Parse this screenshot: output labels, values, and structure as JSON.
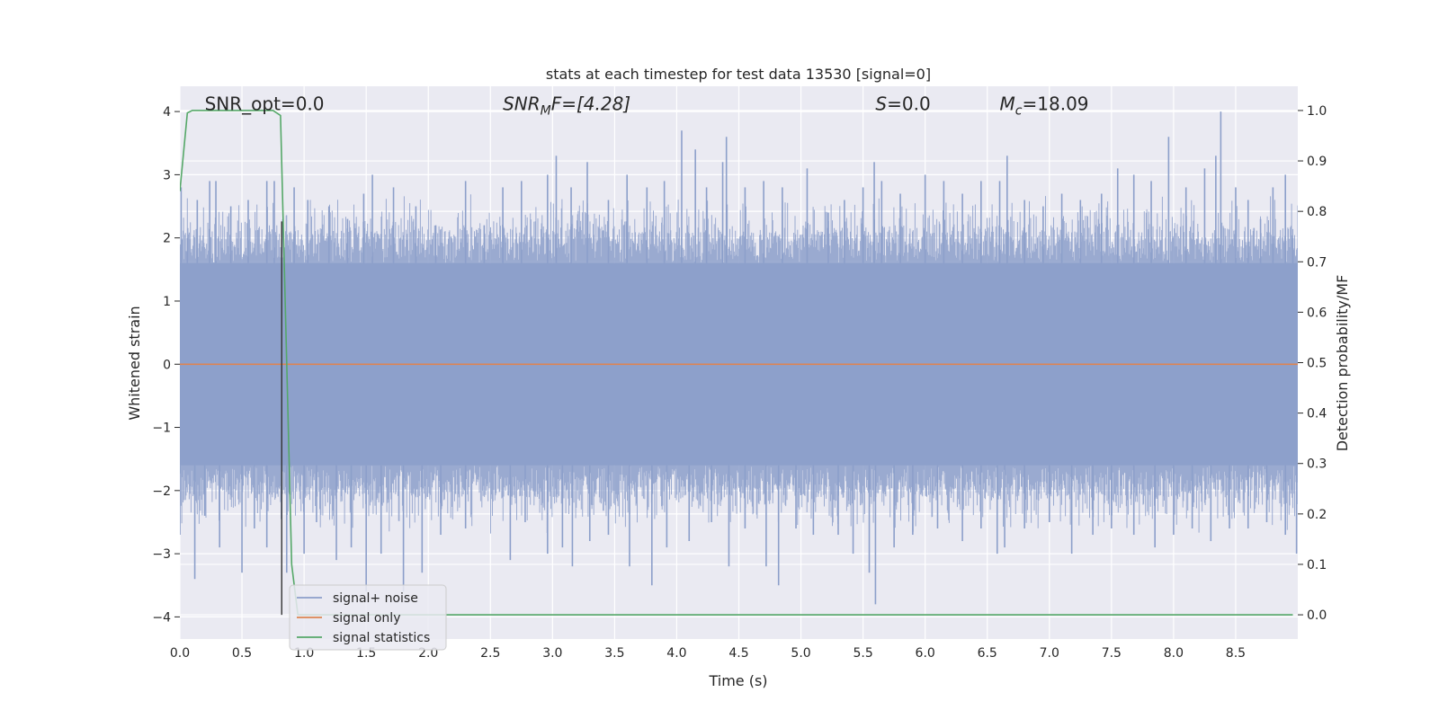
{
  "chart_data": {
    "type": "line",
    "title": "stats at each timestep for test data 13530 [signal=0]",
    "xlabel": "Time (s)",
    "ylabel": "Whitened strain",
    "y2label": "Detection probability/MF",
    "xlim": [
      0.0,
      9.0
    ],
    "ylim": [
      -4.35,
      4.4
    ],
    "y2lim": [
      -0.048,
      1.048
    ],
    "xticks": [
      "0.0",
      "0.5",
      "1.0",
      "1.5",
      "2.0",
      "2.5",
      "3.0",
      "3.5",
      "4.0",
      "4.5",
      "5.0",
      "5.5",
      "6.0",
      "6.5",
      "7.0",
      "7.5",
      "8.0",
      "8.5"
    ],
    "yticks": [
      "4",
      "3",
      "2",
      "1",
      "0",
      "−1",
      "−2",
      "−3",
      "−4"
    ],
    "y2ticks": [
      "1.0",
      "0.9",
      "0.8",
      "0.7",
      "0.6",
      "0.5",
      "0.4",
      "0.3",
      "0.2",
      "0.1",
      "0.0"
    ],
    "grid": true,
    "legend_position": "lower-left",
    "annotations": [
      {
        "id": "snr-opt",
        "label": "SNR_opt=0.0",
        "x": 0.2,
        "y": 4.12
      },
      {
        "id": "snr-mf",
        "label": "SNR",
        "sub": "M",
        "suffix": "F=[4.28]",
        "x": 2.6,
        "y": 4.12
      },
      {
        "id": "s",
        "label": "S",
        "suffix": "=0.0",
        "x": 5.6,
        "y": 4.12
      },
      {
        "id": "mc",
        "label": "M",
        "sub": "c",
        "suffix": "=18.09",
        "x": 6.6,
        "y": 4.12
      }
    ],
    "vline": {
      "x": 0.82,
      "ymin": 0.0,
      "ymax": 0.78,
      "axis": "y2"
    },
    "series": [
      {
        "name": "signal+ noise",
        "color": "#8c9fca",
        "axis": "y",
        "kind": "noise",
        "x_range": [
          0.0,
          9.0
        ],
        "band_min": -1.6,
        "band_max": 1.6,
        "peaks_up": [
          [
            0.01,
            2.8
          ],
          [
            0.06,
            2.0
          ],
          [
            0.14,
            2.6
          ],
          [
            0.24,
            2.9
          ],
          [
            0.29,
            2.9
          ],
          [
            0.41,
            2.5
          ],
          [
            0.55,
            2.6
          ],
          [
            0.7,
            2.9
          ],
          [
            0.76,
            2.9
          ],
          [
            0.92,
            2.8
          ],
          [
            1.03,
            2.6
          ],
          [
            1.2,
            2.5
          ],
          [
            1.35,
            2.3
          ],
          [
            1.48,
            2.7
          ],
          [
            1.55,
            3.0
          ],
          [
            1.72,
            2.8
          ],
          [
            1.9,
            2.5
          ],
          [
            2.06,
            2.2
          ],
          [
            2.3,
            2.9
          ],
          [
            2.45,
            2.2
          ],
          [
            2.6,
            2.8
          ],
          [
            2.75,
            2.9
          ],
          [
            2.96,
            3.0
          ],
          [
            3.03,
            3.3
          ],
          [
            3.15,
            2.8
          ],
          [
            3.28,
            3.2
          ],
          [
            3.45,
            2.6
          ],
          [
            3.6,
            3.0
          ],
          [
            3.76,
            2.8
          ],
          [
            3.9,
            2.9
          ],
          [
            4.04,
            3.7
          ],
          [
            4.15,
            3.4
          ],
          [
            4.24,
            2.8
          ],
          [
            4.37,
            3.2
          ],
          [
            4.4,
            3.6
          ],
          [
            4.55,
            2.8
          ],
          [
            4.7,
            2.9
          ],
          [
            4.85,
            2.8
          ],
          [
            5.05,
            3.1
          ],
          [
            5.22,
            2.4
          ],
          [
            5.35,
            2.6
          ],
          [
            5.5,
            2.8
          ],
          [
            5.59,
            3.2
          ],
          [
            5.65,
            2.9
          ],
          [
            5.8,
            2.7
          ],
          [
            6.0,
            3.0
          ],
          [
            6.15,
            2.9
          ],
          [
            6.3,
            2.7
          ],
          [
            6.45,
            2.9
          ],
          [
            6.6,
            2.9
          ],
          [
            6.66,
            3.3
          ],
          [
            6.8,
            2.6
          ],
          [
            6.95,
            2.5
          ],
          [
            7.1,
            2.7
          ],
          [
            7.25,
            2.6
          ],
          [
            7.42,
            2.7
          ],
          [
            7.55,
            3.1
          ],
          [
            7.68,
            3.0
          ],
          [
            7.82,
            2.9
          ],
          [
            7.96,
            3.6
          ],
          [
            8.1,
            2.8
          ],
          [
            8.25,
            3.1
          ],
          [
            8.34,
            3.3
          ],
          [
            8.38,
            4.0
          ],
          [
            8.5,
            2.8
          ],
          [
            8.6,
            2.6
          ],
          [
            8.7,
            2.3
          ],
          [
            8.8,
            2.8
          ],
          [
            8.9,
            3.0
          ],
          [
            8.96,
            2.0
          ]
        ],
        "peaks_down": [
          [
            0.0,
            -2.7
          ],
          [
            0.12,
            -3.4
          ],
          [
            0.2,
            -2.4
          ],
          [
            0.32,
            -2.9
          ],
          [
            0.5,
            -3.3
          ],
          [
            0.6,
            -2.6
          ],
          [
            0.7,
            -2.9
          ],
          [
            0.86,
            -3.3
          ],
          [
            1.0,
            -3.0
          ],
          [
            1.1,
            -2.5
          ],
          [
            1.26,
            -3.1
          ],
          [
            1.38,
            -2.9
          ],
          [
            1.5,
            -3.6
          ],
          [
            1.62,
            -3.0
          ],
          [
            1.8,
            -3.6
          ],
          [
            1.95,
            -3.3
          ],
          [
            2.1,
            -2.7
          ],
          [
            2.3,
            -2.6
          ],
          [
            2.66,
            -3.1
          ],
          [
            2.78,
            -2.5
          ],
          [
            2.96,
            -3.0
          ],
          [
            3.08,
            -2.9
          ],
          [
            3.16,
            -3.2
          ],
          [
            3.3,
            -2.8
          ],
          [
            3.45,
            -2.7
          ],
          [
            3.62,
            -3.2
          ],
          [
            3.8,
            -3.5
          ],
          [
            3.92,
            -2.9
          ],
          [
            4.1,
            -2.8
          ],
          [
            4.28,
            -2.5
          ],
          [
            4.42,
            -3.2
          ],
          [
            4.55,
            -2.6
          ],
          [
            4.72,
            -3.2
          ],
          [
            4.82,
            -3.5
          ],
          [
            4.96,
            -2.6
          ],
          [
            5.1,
            -2.7
          ],
          [
            5.3,
            -2.7
          ],
          [
            5.42,
            -3.0
          ],
          [
            5.55,
            -3.3
          ],
          [
            5.6,
            -3.8
          ],
          [
            5.75,
            -2.9
          ],
          [
            5.9,
            -2.7
          ],
          [
            6.1,
            -2.6
          ],
          [
            6.3,
            -2.8
          ],
          [
            6.45,
            -2.6
          ],
          [
            6.58,
            -3.0
          ],
          [
            6.64,
            -2.9
          ],
          [
            6.8,
            -2.6
          ],
          [
            7.0,
            -2.5
          ],
          [
            7.18,
            -3.0
          ],
          [
            7.35,
            -2.7
          ],
          [
            7.5,
            -2.6
          ],
          [
            7.68,
            -2.7
          ],
          [
            7.85,
            -2.9
          ],
          [
            8.0,
            -2.7
          ],
          [
            8.15,
            -2.6
          ],
          [
            8.3,
            -2.8
          ],
          [
            8.45,
            -2.6
          ],
          [
            8.6,
            -2.6
          ],
          [
            8.75,
            -2.5
          ],
          [
            8.9,
            -2.7
          ],
          [
            8.99,
            -3.0
          ]
        ]
      },
      {
        "name": "signal only",
        "color": "#dd8452",
        "axis": "y",
        "kind": "line",
        "points": [
          [
            0.0,
            0.0
          ],
          [
            9.0,
            0.0
          ]
        ]
      },
      {
        "name": "signal statistics",
        "color": "#55a868",
        "axis": "y2",
        "kind": "line",
        "points": [
          [
            0.0,
            0.84
          ],
          [
            0.06,
            0.995
          ],
          [
            0.1,
            1.0
          ],
          [
            0.2,
            1.0
          ],
          [
            0.4,
            1.0
          ],
          [
            0.6,
            1.0
          ],
          [
            0.75,
            1.0
          ],
          [
            0.81,
            0.99
          ],
          [
            0.86,
            0.5
          ],
          [
            0.9,
            0.1
          ],
          [
            0.95,
            0.0
          ],
          [
            1.0,
            0.0
          ],
          [
            2.0,
            0.0
          ],
          [
            4.0,
            0.0
          ],
          [
            6.0,
            0.0
          ],
          [
            8.0,
            0.0
          ],
          [
            8.96,
            0.0
          ]
        ]
      }
    ]
  }
}
